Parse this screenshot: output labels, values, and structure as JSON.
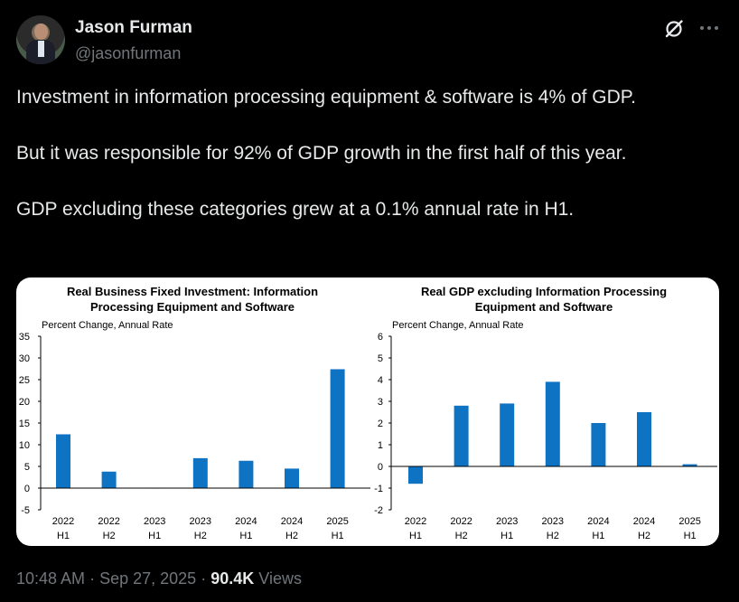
{
  "author": {
    "name": "Jason Furman",
    "handle": "@jasonfurman"
  },
  "icons": {
    "avatar": "avatar-photo",
    "grok": "grok-icon",
    "more": "more-options-icon"
  },
  "tweet": {
    "paragraphs": [
      "Investment in information processing equipment & software is 4% of GDP.",
      "But it was responsible for 92% of GDP growth in the first half of this year.",
      "GDP excluding these categories grew at a 0.1% annual rate in H1."
    ]
  },
  "meta": {
    "time": "10:48 AM",
    "sep1": "·",
    "date": "Sep 27, 2025",
    "sep2": "·",
    "views_count": "90.4K",
    "views_label": "Views"
  },
  "colors": {
    "background": "#000000",
    "text": "#e7e9ea",
    "muted": "#71767b",
    "bar": "#0f73c4"
  },
  "chart_data": [
    {
      "type": "bar",
      "title": "Real Business Fixed Investment: Information Processing Equipment and Software",
      "title_lines": [
        "Real Business Fixed Investment: Information",
        "Processing Equipment and Software"
      ],
      "ylabel": "Percent Change, Annual Rate",
      "ylim": [
        -5,
        35
      ],
      "yticks": [
        35,
        30,
        25,
        20,
        15,
        10,
        5,
        0,
        -5
      ],
      "categories": [
        {
          "year": "2022",
          "half": "H1"
        },
        {
          "year": "2022",
          "half": "H2"
        },
        {
          "year": "2023",
          "half": "H1"
        },
        {
          "year": "2023",
          "half": "H2"
        },
        {
          "year": "2024",
          "half": "H1"
        },
        {
          "year": "2024",
          "half": "H2"
        },
        {
          "year": "2025",
          "half": "H1"
        }
      ],
      "values": [
        12.4,
        3.8,
        0.1,
        6.9,
        6.3,
        4.5,
        27.4
      ],
      "grid": false,
      "bar_color": "#0f73c4"
    },
    {
      "type": "bar",
      "title": "Real GDP excluding Information Processing Equipment and Software",
      "title_lines": [
        "Real GDP excluding Information Processing",
        "Equipment and Software"
      ],
      "ylabel": "Percent Change, Annual Rate",
      "ylim": [
        -2,
        6
      ],
      "yticks": [
        6,
        5,
        4,
        3,
        2,
        1,
        0,
        -1,
        -2
      ],
      "categories": [
        {
          "year": "2022",
          "half": "H1"
        },
        {
          "year": "2022",
          "half": "H2"
        },
        {
          "year": "2023",
          "half": "H1"
        },
        {
          "year": "2023",
          "half": "H2"
        },
        {
          "year": "2024",
          "half": "H1"
        },
        {
          "year": "2024",
          "half": "H2"
        },
        {
          "year": "2025",
          "half": "H1"
        }
      ],
      "values": [
        -0.8,
        2.8,
        2.9,
        3.9,
        2.0,
        2.5,
        0.1
      ],
      "grid": false,
      "bar_color": "#0f73c4"
    }
  ]
}
